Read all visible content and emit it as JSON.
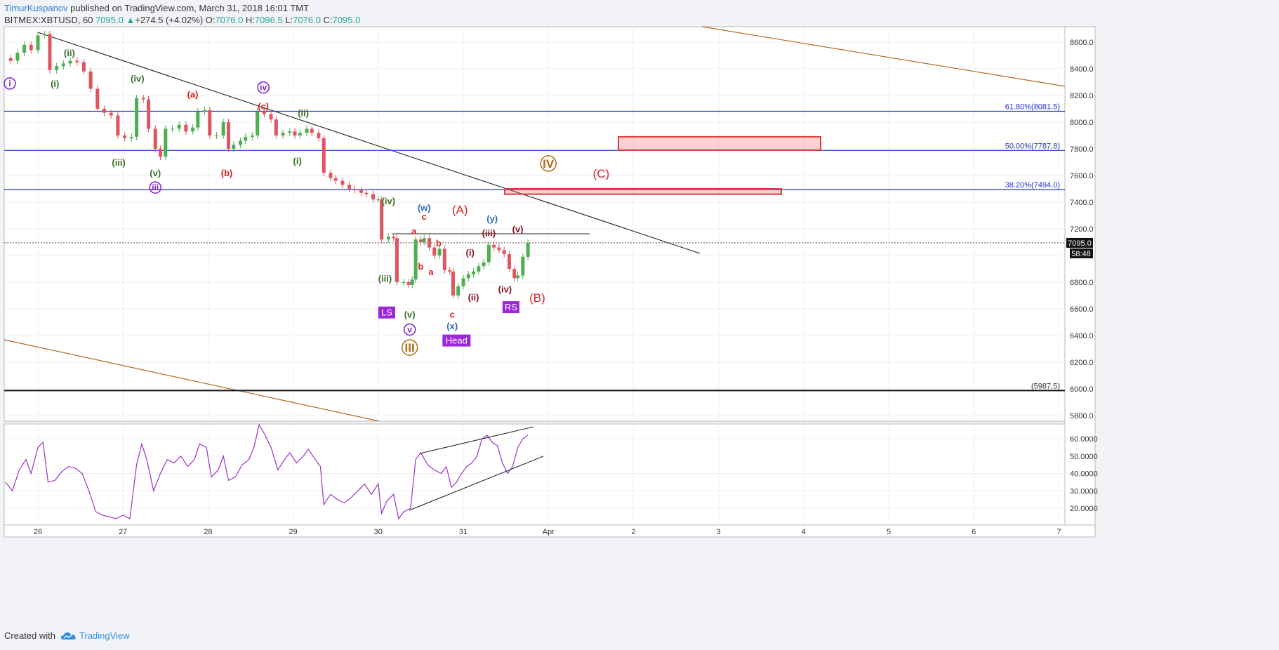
{
  "header": {
    "author": "TimurKuspanov",
    "published": " published on TradingView.com, March 31, 2018 16:01 TMT",
    "symbol": "BITMEX:XBTUSD, 60",
    "last": "7095.0",
    "change_arrow": "▲",
    "change": "+274.5 (+4.02%)",
    "o_label": "O:",
    "o": "7076.0",
    "h_label": "H:",
    "h": "7096.5",
    "l_label": "L:",
    "l": "7076.0",
    "c_label": "C:",
    "c": "7095.0"
  },
  "footer": {
    "created_with": "Created with",
    "brand": "TradingView",
    "logo_icon": "tradingview-cloud-icon"
  },
  "colors": {
    "up": "#4caf50",
    "down": "#e05560",
    "fib": "#2233cc",
    "rsi": "#9b32c8",
    "channel": "#b06a22",
    "red_label": "#d62020",
    "green_label": "#3a6e2a",
    "purple_label": "#7a1fd0",
    "blue_label": "#2a68c8",
    "maroon_label": "#8a1020",
    "orange_label": "#b36a10"
  },
  "chart_data": {
    "type": "candlestick",
    "x_tick_labels": [
      "26",
      "27",
      "28",
      "29",
      "30",
      "31",
      "Apr",
      "2",
      "3",
      "4",
      "5",
      "6",
      "7"
    ],
    "y_tick_labels": [
      "8600.0",
      "8400.0",
      "8200.0",
      "8000.0",
      "7800.0",
      "7600.0",
      "7400.0",
      "7200.0",
      "7000.0",
      "6800.0",
      "6600.0",
      "6400.0",
      "6200.0",
      "6000.0",
      "5800.0"
    ],
    "ylim": [
      5725,
      8750
    ],
    "last_price_label": "7095.0",
    "countdown_label": "58:48",
    "last_price": 7095.0,
    "series_close": [
      [
        25.6,
        8480
      ],
      [
        25.68,
        8460
      ],
      [
        25.76,
        8520
      ],
      [
        25.84,
        8580
      ],
      [
        25.92,
        8540
      ],
      [
        26.0,
        8650
      ],
      [
        26.08,
        8660
      ],
      [
        26.14,
        8390
      ],
      [
        26.22,
        8420
      ],
      [
        26.3,
        8440
      ],
      [
        26.38,
        8460
      ],
      [
        26.46,
        8450
      ],
      [
        26.54,
        8380
      ],
      [
        26.62,
        8250
      ],
      [
        26.7,
        8100
      ],
      [
        26.78,
        8070
      ],
      [
        26.86,
        8050
      ],
      [
        26.94,
        7900
      ],
      [
        27.02,
        7880
      ],
      [
        27.1,
        7890
      ],
      [
        27.16,
        8180
      ],
      [
        27.24,
        8170
      ],
      [
        27.3,
        7950
      ],
      [
        27.38,
        7800
      ],
      [
        27.44,
        7740
      ],
      [
        27.5,
        7950
      ],
      [
        27.58,
        7950
      ],
      [
        27.66,
        7980
      ],
      [
        27.74,
        7930
      ],
      [
        27.82,
        7960
      ],
      [
        27.88,
        8080
      ],
      [
        27.96,
        8090
      ],
      [
        28.02,
        7900
      ],
      [
        28.1,
        7900
      ],
      [
        28.18,
        8000
      ],
      [
        28.24,
        7800
      ],
      [
        28.3,
        7830
      ],
      [
        28.38,
        7860
      ],
      [
        28.44,
        7890
      ],
      [
        28.52,
        7900
      ],
      [
        28.58,
        8080
      ],
      [
        28.66,
        8060
      ],
      [
        28.74,
        8020
      ],
      [
        28.8,
        7900
      ],
      [
        28.88,
        7920
      ],
      [
        28.96,
        7930
      ],
      [
        29.02,
        7900
      ],
      [
        29.08,
        7920
      ],
      [
        29.16,
        7950
      ],
      [
        29.22,
        7920
      ],
      [
        29.3,
        7880
      ],
      [
        29.36,
        7620
      ],
      [
        29.44,
        7580
      ],
      [
        29.5,
        7560
      ],
      [
        29.58,
        7530
      ],
      [
        29.66,
        7500
      ],
      [
        29.72,
        7490
      ],
      [
        29.8,
        7470
      ],
      [
        29.86,
        7460
      ],
      [
        29.94,
        7420
      ],
      [
        30.0,
        7420
      ],
      [
        30.04,
        7120
      ],
      [
        30.12,
        7140
      ],
      [
        30.18,
        7130
      ],
      [
        30.22,
        6800
      ],
      [
        30.3,
        6800
      ],
      [
        30.36,
        6780
      ],
      [
        30.4,
        6820
      ],
      [
        30.44,
        7120
      ],
      [
        30.5,
        7100
      ],
      [
        30.54,
        7130
      ],
      [
        30.6,
        7060
      ],
      [
        30.66,
        7000
      ],
      [
        30.72,
        7050
      ],
      [
        30.78,
        6890
      ],
      [
        30.84,
        6880
      ],
      [
        30.88,
        6700
      ],
      [
        30.94,
        6770
      ],
      [
        31.0,
        6830
      ],
      [
        31.06,
        6860
      ],
      [
        31.12,
        6880
      ],
      [
        31.18,
        6920
      ],
      [
        31.24,
        6950
      ],
      [
        31.3,
        7080
      ],
      [
        31.36,
        7060
      ],
      [
        31.42,
        7040
      ],
      [
        31.48,
        7010
      ],
      [
        31.54,
        6900
      ],
      [
        31.6,
        6830
      ],
      [
        31.64,
        6850
      ],
      [
        31.7,
        6990
      ],
      [
        31.76,
        7095
      ]
    ],
    "fib_levels": [
      {
        "label": "61.80%(8081.5)",
        "price": 8081.5
      },
      {
        "label": "50.00%(7787.8)",
        "price": 7787.8
      },
      {
        "label": "38.20%(7494.0)",
        "price": 7494.0
      }
    ],
    "support_label": "(5987.5)",
    "support_price": 5987.5,
    "wave_labels": [
      {
        "text": "i",
        "circled": true,
        "color": "purple_label",
        "x": 25.67,
        "price": 8290
      },
      {
        "text": "(ii)",
        "color": "green_label",
        "x": 26.37,
        "price": 8520
      },
      {
        "text": "(i)",
        "color": "green_label",
        "x": 26.2,
        "price": 8290
      },
      {
        "text": "(iv)",
        "color": "green_label",
        "x": 27.17,
        "price": 8330
      },
      {
        "text": "(a)",
        "color": "red_label",
        "x": 27.82,
        "price": 8210
      },
      {
        "text": "iv",
        "circled": true,
        "color": "purple_label",
        "x": 28.65,
        "price": 8260
      },
      {
        "text": "(c)",
        "color": "red_label",
        "x": 28.65,
        "price": 8120
      },
      {
        "text": "(ii)",
        "color": "green_label",
        "x": 29.12,
        "price": 8070
      },
      {
        "text": "(iii)",
        "color": "green_label",
        "x": 26.95,
        "price": 7700
      },
      {
        "text": "(v)",
        "color": "green_label",
        "x": 27.38,
        "price": 7620
      },
      {
        "text": "iii",
        "circled": true,
        "color": "purple_label",
        "x": 27.38,
        "price": 7510
      },
      {
        "text": "(b)",
        "color": "red_label",
        "x": 28.22,
        "price": 7620
      },
      {
        "text": "(i)",
        "color": "green_label",
        "x": 29.05,
        "price": 7710
      },
      {
        "text": "IV",
        "circled": true,
        "color": "orange_label",
        "x": 32.0,
        "price": 7690
      },
      {
        "text": "(C)",
        "color": "red_label",
        "x": 32.62,
        "price": 7610
      },
      {
        "text": "(iv)",
        "color": "green_label",
        "x": 30.12,
        "price": 7410
      },
      {
        "text": "(w)",
        "color": "blue_label",
        "x": 30.54,
        "price": 7360
      },
      {
        "text": "(A)",
        "color": "red_label",
        "x": 30.96,
        "price": 7340
      },
      {
        "text": "c",
        "color": "red_label",
        "x": 30.54,
        "price": 7295
      },
      {
        "text": "a",
        "color": "red_label",
        "x": 30.42,
        "price": 7185
      },
      {
        "text": "b",
        "color": "red_label",
        "x": 30.71,
        "price": 7095
      },
      {
        "text": "(y)",
        "color": "blue_label",
        "x": 31.34,
        "price": 7280
      },
      {
        "text": "(v)",
        "color": "maroon_label",
        "x": 31.64,
        "price": 7200
      },
      {
        "text": "(iii)",
        "color": "maroon_label",
        "x": 31.3,
        "price": 7170
      },
      {
        "text": "(i)",
        "color": "maroon_label",
        "x": 31.08,
        "price": 7025
      },
      {
        "text": "b",
        "color": "red_label",
        "x": 30.5,
        "price": 6920
      },
      {
        "text": "a",
        "color": "red_label",
        "x": 30.62,
        "price": 6880
      },
      {
        "text": "(iii)",
        "color": "green_label",
        "x": 30.08,
        "price": 6830
      },
      {
        "text": "(iv)",
        "color": "maroon_label",
        "x": 31.49,
        "price": 6750
      },
      {
        "text": "(ii)",
        "color": "maroon_label",
        "x": 31.12,
        "price": 6690
      },
      {
        "text": "(B)",
        "color": "red_label",
        "x": 31.87,
        "price": 6680
      },
      {
        "text": "c",
        "color": "red_label",
        "x": 30.87,
        "price": 6560
      },
      {
        "text": "(v)",
        "color": "green_label",
        "x": 30.37,
        "price": 6560
      },
      {
        "text": "(x)",
        "color": "blue_label",
        "x": 30.87,
        "price": 6475
      },
      {
        "text": "v",
        "circled": true,
        "color": "purple_label",
        "x": 30.37,
        "price": 6445
      },
      {
        "text": "III",
        "circled": true,
        "color": "orange_label",
        "x": 30.37,
        "price": 6310
      }
    ],
    "pattern_labels": [
      {
        "text": "LS",
        "x": 30.1,
        "price": 6570
      },
      {
        "text": "Head",
        "x": 30.92,
        "price": 6360
      },
      {
        "text": "RS",
        "x": 31.56,
        "price": 6610
      }
    ],
    "rsi": {
      "y_tick_labels": [
        "60.0000",
        "50.0000",
        "40.0000",
        "30.0000",
        "20.0000"
      ],
      "ylim": [
        13,
        72
      ],
      "values": [
        [
          25.62,
          35
        ],
        [
          25.7,
          30
        ],
        [
          25.78,
          42
        ],
        [
          25.86,
          48
        ],
        [
          25.92,
          40
        ],
        [
          26.0,
          55
        ],
        [
          26.06,
          58
        ],
        [
          26.12,
          35
        ],
        [
          26.2,
          36
        ],
        [
          26.28,
          41
        ],
        [
          26.36,
          44
        ],
        [
          26.44,
          43
        ],
        [
          26.52,
          40
        ],
        [
          26.6,
          30
        ],
        [
          26.68,
          18
        ],
        [
          26.76,
          16
        ],
        [
          26.84,
          15
        ],
        [
          26.92,
          14
        ],
        [
          27.0,
          16
        ],
        [
          27.08,
          14
        ],
        [
          27.16,
          45
        ],
        [
          27.22,
          57
        ],
        [
          27.28,
          48
        ],
        [
          27.36,
          30
        ],
        [
          27.44,
          40
        ],
        [
          27.52,
          48
        ],
        [
          27.6,
          46
        ],
        [
          27.68,
          50
        ],
        [
          27.76,
          44
        ],
        [
          27.84,
          48
        ],
        [
          27.9,
          57
        ],
        [
          27.98,
          55
        ],
        [
          28.04,
          38
        ],
        [
          28.12,
          42
        ],
        [
          28.18,
          50
        ],
        [
          28.24,
          36
        ],
        [
          28.32,
          38
        ],
        [
          28.4,
          45
        ],
        [
          28.48,
          48
        ],
        [
          28.54,
          55
        ],
        [
          28.6,
          68
        ],
        [
          28.66,
          63
        ],
        [
          28.74,
          55
        ],
        [
          28.82,
          42
        ],
        [
          28.9,
          48
        ],
        [
          28.96,
          52
        ],
        [
          29.04,
          46
        ],
        [
          29.12,
          50
        ],
        [
          29.18,
          54
        ],
        [
          29.26,
          48
        ],
        [
          29.32,
          44
        ],
        [
          29.36,
          22
        ],
        [
          29.44,
          28
        ],
        [
          29.52,
          25
        ],
        [
          29.6,
          23
        ],
        [
          29.68,
          26
        ],
        [
          29.76,
          30
        ],
        [
          29.84,
          34
        ],
        [
          29.92,
          28
        ],
        [
          30.0,
          34
        ],
        [
          30.04,
          17
        ],
        [
          30.1,
          24
        ],
        [
          30.18,
          28
        ],
        [
          30.24,
          14
        ],
        [
          30.3,
          18
        ],
        [
          30.38,
          20
        ],
        [
          30.44,
          48
        ],
        [
          30.5,
          52
        ],
        [
          30.58,
          45
        ],
        [
          30.66,
          42
        ],
        [
          30.74,
          40
        ],
        [
          30.8,
          44
        ],
        [
          30.86,
          32
        ],
        [
          30.92,
          35
        ],
        [
          30.98,
          40
        ],
        [
          31.04,
          44
        ],
        [
          31.1,
          46
        ],
        [
          31.16,
          50
        ],
        [
          31.22,
          60
        ],
        [
          31.28,
          62
        ],
        [
          31.34,
          58
        ],
        [
          31.4,
          56
        ],
        [
          31.46,
          46
        ],
        [
          31.52,
          40
        ],
        [
          31.58,
          44
        ],
        [
          31.64,
          55
        ],
        [
          31.7,
          60
        ],
        [
          31.76,
          62
        ]
      ]
    }
  }
}
